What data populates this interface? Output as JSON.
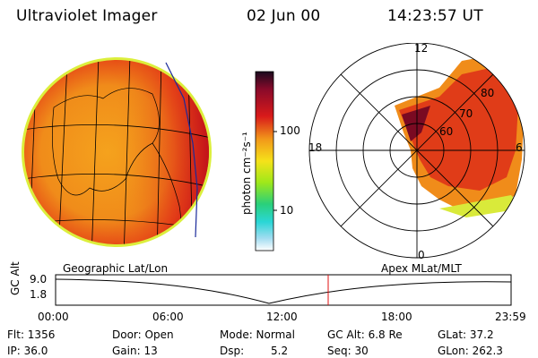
{
  "header": {
    "instrument": "Ultraviolet Imager",
    "date": "02 Jun 00",
    "time": "14:23:57 UT"
  },
  "colorbar": {
    "label": "photon cm⁻²s⁻¹",
    "ticks": [
      "100",
      "10"
    ]
  },
  "panels": {
    "left_caption": "Geographic Lat/Lon",
    "right_caption": "Apex MLat/MLT"
  },
  "polar": {
    "mlt_labels": [
      "12",
      "18",
      "6",
      "0"
    ],
    "mlat_labels": [
      "80",
      "70",
      "60"
    ]
  },
  "altitude_plot": {
    "ylabel": "GC Alt",
    "yticks": [
      "9.0",
      "1.8"
    ],
    "xticks": [
      "00:00",
      "06:00",
      "12:00",
      "18:00",
      "23:59"
    ],
    "current_time_marker": "14:23:57"
  },
  "footer": {
    "flt": "Flt: 1356",
    "ip": "IP: 36.0",
    "door": "Door: Open",
    "gain": "Gain: 13",
    "mode": "Mode: Normal",
    "dsp_label": "Dsp:",
    "dsp_value": "5.2",
    "gc_alt": "GC Alt: 6.8 Re",
    "seq": "Seq: 30",
    "glat": "GLat:  37.2",
    "glon": "GLon: 262.3"
  }
}
